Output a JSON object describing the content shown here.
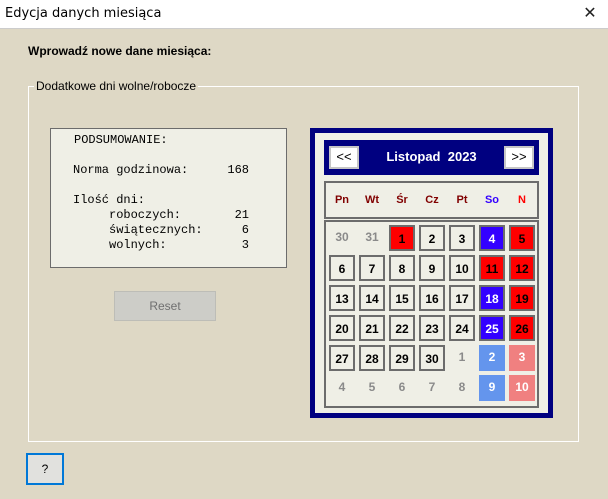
{
  "window": {
    "title": "Edycja danych miesiąca",
    "close_icon": "close-icon"
  },
  "heading": "Wprowadź nowe dane miesiąca:",
  "group_label": "Dodatkowe dni wolne/robocze",
  "summary": {
    "title": "PODSUMOWANIE:",
    "norm_label": "Norma godzinowa:",
    "norm_value": "168",
    "days_label": "Ilość dni:",
    "working_label": "roboczych:",
    "working_value": "21",
    "holiday_label": "świątecznych:",
    "holiday_value": "6",
    "free_label": "wolnych:",
    "free_value": "3"
  },
  "reset_label": "Reset",
  "help_label": "?",
  "calendar": {
    "prev_label": "<<",
    "next_label": ">>",
    "month": "Listopad",
    "year": "2023",
    "weekdays": [
      "Pn",
      "Wt",
      "Śr",
      "Cz",
      "Pt",
      "So",
      "N"
    ],
    "weekday_colors": [
      "#800000",
      "#800000",
      "#800000",
      "#800000",
      "#800000",
      "#3300ff",
      "#ff0000"
    ],
    "cells": [
      {
        "day": "30",
        "type": "other"
      },
      {
        "day": "31",
        "type": "other"
      },
      {
        "day": "1",
        "type": "holiday"
      },
      {
        "day": "2",
        "type": "normal"
      },
      {
        "day": "3",
        "type": "normal"
      },
      {
        "day": "4",
        "type": "free"
      },
      {
        "day": "5",
        "type": "holiday"
      },
      {
        "day": "6",
        "type": "normal"
      },
      {
        "day": "7",
        "type": "normal"
      },
      {
        "day": "8",
        "type": "normal"
      },
      {
        "day": "9",
        "type": "normal"
      },
      {
        "day": "10",
        "type": "normal"
      },
      {
        "day": "11",
        "type": "holiday"
      },
      {
        "day": "12",
        "type": "holiday"
      },
      {
        "day": "13",
        "type": "normal"
      },
      {
        "day": "14",
        "type": "normal"
      },
      {
        "day": "15",
        "type": "normal"
      },
      {
        "day": "16",
        "type": "normal"
      },
      {
        "day": "17",
        "type": "normal"
      },
      {
        "day": "18",
        "type": "free"
      },
      {
        "day": "19",
        "type": "holiday"
      },
      {
        "day": "20",
        "type": "normal"
      },
      {
        "day": "21",
        "type": "normal"
      },
      {
        "day": "22",
        "type": "normal"
      },
      {
        "day": "23",
        "type": "normal"
      },
      {
        "day": "24",
        "type": "normal"
      },
      {
        "day": "25",
        "type": "free"
      },
      {
        "day": "26",
        "type": "holiday"
      },
      {
        "day": "27",
        "type": "normal"
      },
      {
        "day": "28",
        "type": "normal"
      },
      {
        "day": "29",
        "type": "normal"
      },
      {
        "day": "30",
        "type": "normal"
      },
      {
        "day": "1",
        "type": "other"
      },
      {
        "day": "2",
        "type": "other-sat"
      },
      {
        "day": "3",
        "type": "other-sun"
      },
      {
        "day": "4",
        "type": "other"
      },
      {
        "day": "5",
        "type": "other"
      },
      {
        "day": "6",
        "type": "other"
      },
      {
        "day": "7",
        "type": "other"
      },
      {
        "day": "8",
        "type": "other"
      },
      {
        "day": "9",
        "type": "other-sat"
      },
      {
        "day": "10",
        "type": "other-sun"
      }
    ]
  }
}
